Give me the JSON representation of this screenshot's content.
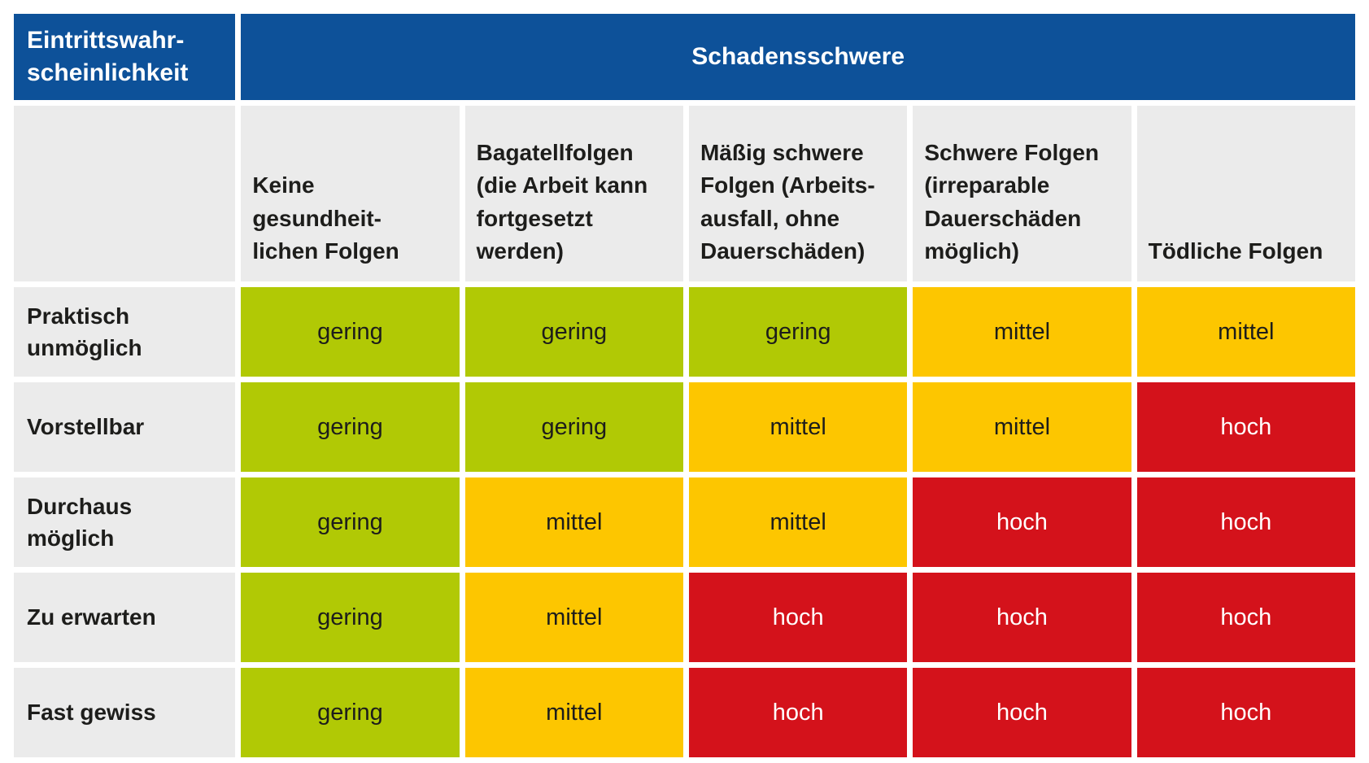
{
  "colors": {
    "blue": "#0d5199",
    "gray": "#ebebeb",
    "gering": "#b1c905",
    "mittel": "#fdc600",
    "hoch": "#d4121b",
    "text_dark": "#1d1d1b"
  },
  "matrix": {
    "probability_header": "Eintrittswahr-\nscheinlichkeit",
    "severity_header": "Schadensschwere",
    "columns": [
      "Keine\ngesundheit-\nlichen Folgen",
      "Bagatellfolgen\n(die Arbeit kann\nfortgesetzt\nwerden)",
      "Mäßig schwere\nFolgen (Arbeits-\nausfall, ohne\nDauerschäden)",
      "Schwere Folgen\n(irreparable\nDauerschäden\nmöglich)",
      "Tödliche Folgen"
    ],
    "rows": [
      {
        "label": "Praktisch\nunmöglich",
        "cells": [
          "gering",
          "gering",
          "gering",
          "mittel",
          "mittel"
        ]
      },
      {
        "label": "Vorstellbar",
        "cells": [
          "gering",
          "gering",
          "mittel",
          "mittel",
          "hoch"
        ]
      },
      {
        "label": "Durchaus\nmöglich",
        "cells": [
          "gering",
          "mittel",
          "mittel",
          "hoch",
          "hoch"
        ]
      },
      {
        "label": "Zu erwarten",
        "cells": [
          "gering",
          "mittel",
          "hoch",
          "hoch",
          "hoch"
        ]
      },
      {
        "label": "Fast gewiss",
        "cells": [
          "gering",
          "mittel",
          "hoch",
          "hoch",
          "hoch"
        ]
      }
    ]
  },
  "chart_data": {
    "type": "heatmap",
    "title": "",
    "x_axis_label": "Schadensschwere",
    "y_axis_label": "Eintrittswahrscheinlichkeit",
    "x_categories": [
      "Keine gesundheitlichen Folgen",
      "Bagatellfolgen (die Arbeit kann fortgesetzt werden)",
      "Mäßig schwere Folgen (Arbeitsausfall, ohne Dauerschäden)",
      "Schwere Folgen (irreparable Dauerschäden möglich)",
      "Tödliche Folgen"
    ],
    "y_categories": [
      "Praktisch unmöglich",
      "Vorstellbar",
      "Durchaus möglich",
      "Zu erwarten",
      "Fast gewiss"
    ],
    "values": [
      [
        "gering",
        "gering",
        "gering",
        "mittel",
        "mittel"
      ],
      [
        "gering",
        "gering",
        "mittel",
        "mittel",
        "hoch"
      ],
      [
        "gering",
        "mittel",
        "mittel",
        "hoch",
        "hoch"
      ],
      [
        "gering",
        "mittel",
        "hoch",
        "hoch",
        "hoch"
      ],
      [
        "gering",
        "mittel",
        "hoch",
        "hoch",
        "hoch"
      ]
    ],
    "value_color_map": {
      "gering": "#b1c905",
      "mittel": "#fdc600",
      "hoch": "#d4121b"
    },
    "legend_position": "none",
    "grid": false
  }
}
